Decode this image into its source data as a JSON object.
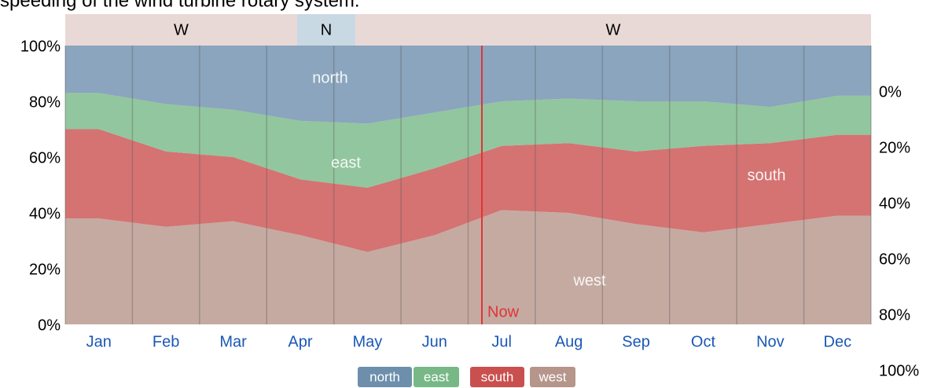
{
  "chart_data": {
    "type": "stacked-area",
    "caption": "speeding of the wind turbine rotary system.",
    "categories": [
      "Jan",
      "Feb",
      "Mar",
      "Apr",
      "May",
      "Jun",
      "Jul",
      "Aug",
      "Sep",
      "Oct",
      "Nov",
      "Dec"
    ],
    "series": [
      {
        "name": "west",
        "color": "#b6958b",
        "values": [
          38,
          35,
          37,
          32,
          26,
          32,
          41,
          40,
          36,
          33,
          36,
          39
        ]
      },
      {
        "name": "south",
        "color": "#c9504f",
        "values": [
          32,
          27,
          23,
          20,
          23,
          24,
          23,
          25,
          26,
          31,
          29,
          29
        ]
      },
      {
        "name": "east",
        "color": "#77b886",
        "values": [
          13,
          17,
          17,
          21,
          23,
          20,
          16,
          16,
          18,
          16,
          13,
          14
        ]
      },
      {
        "name": "north",
        "color": "#6d8fac",
        "values": [
          17,
          21,
          23,
          27,
          28,
          24,
          20,
          19,
          20,
          20,
          22,
          18
        ]
      }
    ],
    "ylim": [
      0,
      100
    ],
    "yticks": [
      {
        "value": 0,
        "label": "0%"
      },
      {
        "value": 20,
        "label": "20%"
      },
      {
        "value": 40,
        "label": "40%"
      },
      {
        "value": 60,
        "label": "60%"
      },
      {
        "value": 80,
        "label": "80%"
      },
      {
        "value": 100,
        "label": "100%"
      }
    ],
    "y2lim": [
      100,
      0
    ],
    "y2ticks": [
      {
        "value": 0,
        "label": "0%"
      },
      {
        "value": 20,
        "label": "20%"
      },
      {
        "value": 40,
        "label": "40%"
      },
      {
        "value": 60,
        "label": "60%"
      },
      {
        "value": 80,
        "label": "80%"
      },
      {
        "value": 100,
        "label": "100%"
      }
    ],
    "dominant_direction": [
      "W",
      "N",
      "W"
    ],
    "now_label": "Now",
    "legend": "bottom"
  }
}
